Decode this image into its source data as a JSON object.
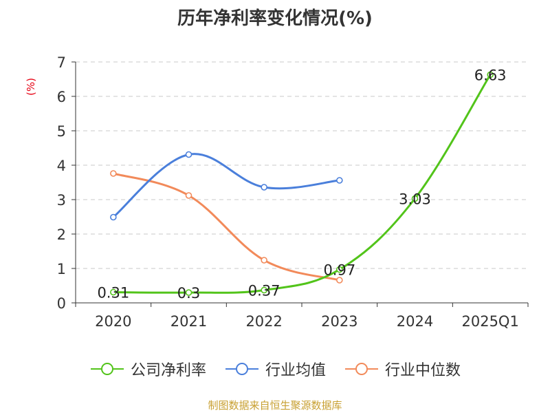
{
  "title": "历年净利率变化情况(%)",
  "source": "制图数据来自恒生聚源数据库",
  "chart_data": {
    "type": "line",
    "title": "历年净利率变化情况(%)",
    "ylabel": "(%)",
    "xlabel": "",
    "categories": [
      "2020",
      "2021",
      "2022",
      "2023",
      "2024",
      "2025Q1"
    ],
    "yticks": [
      "0",
      "1",
      "2",
      "3",
      "4",
      "5",
      "6",
      "7"
    ],
    "ylim": [
      0,
      7
    ],
    "grid": true,
    "legend_position": "bottom",
    "series": [
      {
        "name": "公司净利率",
        "color": "#52c41a",
        "values": [
          0.31,
          0.3,
          0.37,
          0.97,
          3.03,
          6.63
        ],
        "labels": [
          "0.31",
          "0.3",
          "0.37",
          "0.97",
          "3.03",
          "6.63"
        ]
      },
      {
        "name": "行业均值",
        "color": "#4a7fdb",
        "values": [
          2.49,
          4.31,
          3.36,
          3.56,
          null,
          null
        ]
      },
      {
        "name": "行业中位数",
        "color": "#f28a5a",
        "values": [
          3.76,
          3.12,
          1.24,
          0.66,
          null,
          null
        ]
      }
    ]
  }
}
